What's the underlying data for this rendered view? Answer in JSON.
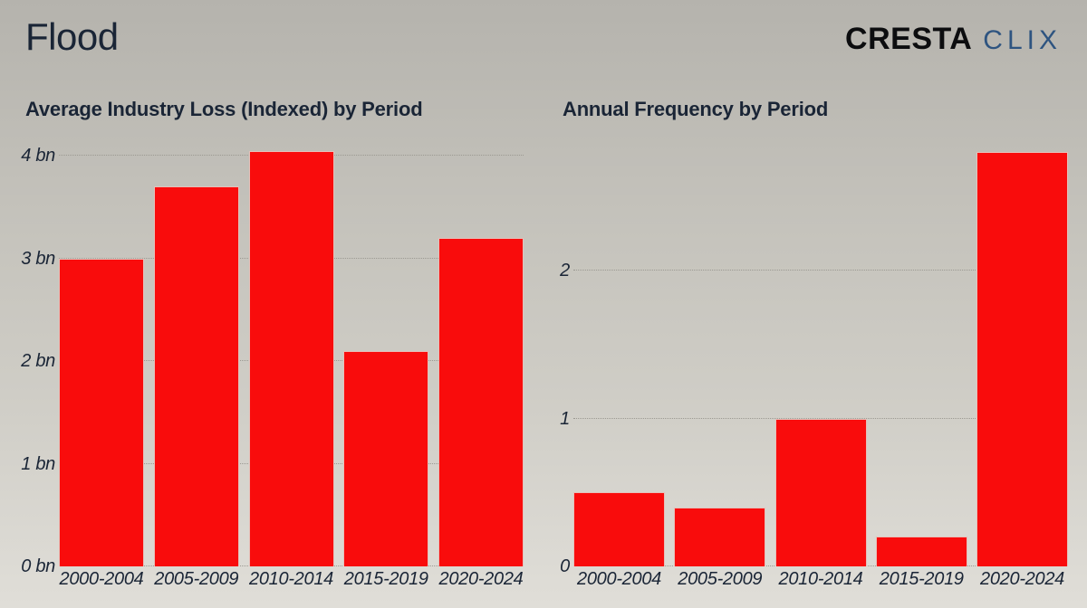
{
  "page": {
    "title": "Flood"
  },
  "logo": {
    "primary": "CRESTA",
    "secondary": "CLIX",
    "primary_color": "#0c0d0f",
    "secondary_color": "#2e5480"
  },
  "colors": {
    "bar": "#f90c0c",
    "text": "#1a2536",
    "gridline": "#9b9992",
    "background_top": "#b5b3ad",
    "background_bottom": "#e0ded8"
  },
  "chart_data": [
    {
      "type": "bar",
      "title": "Average Industry Loss (Indexed) by Period",
      "categories": [
        "2000-2004",
        "2005-2009",
        "2010-2014",
        "2015-2019",
        "2020-2024"
      ],
      "values": [
        3.0,
        3.7,
        4.05,
        2.1,
        3.2
      ],
      "xlabel": "",
      "ylabel": "",
      "yticks": [
        0,
        1,
        2,
        3,
        4
      ],
      "ytick_suffix": " bn",
      "ylim": [
        0,
        4.18
      ],
      "grid": "horizontal-dotted",
      "legend": "none",
      "bar_color": "#f90c0c"
    },
    {
      "type": "bar",
      "title": "Annual Frequency by Period",
      "categories": [
        "2000-2004",
        "2005-2009",
        "2010-2014",
        "2015-2019",
        "2020-2024"
      ],
      "values": [
        0.5,
        0.4,
        1.0,
        0.2,
        2.8
      ],
      "xlabel": "",
      "ylabel": "",
      "yticks": [
        0,
        1,
        2
      ],
      "ytick_suffix": "",
      "ylim": [
        0,
        2.9
      ],
      "grid": "horizontal-dotted",
      "legend": "none",
      "bar_color": "#f90c0c"
    }
  ]
}
